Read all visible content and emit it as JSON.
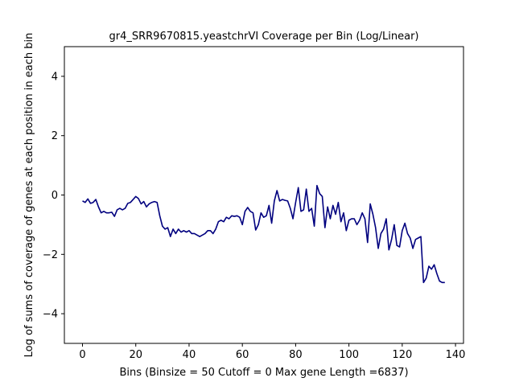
{
  "chart_data": {
    "type": "line",
    "title": "gr4_SRR9670815.yeastchrVI Coverage per Bin (Log/Linear)",
    "xlabel": "Bins  (Binsize = 50 Cutoff = 0 Max gene Length =6837)",
    "ylabel": "Log of sums of coverage of genes at each position in each bin",
    "xlim": [
      -6.8,
      143
    ],
    "ylim": [
      -5,
      5
    ],
    "xticks": [
      0,
      20,
      40,
      60,
      80,
      100,
      120,
      140
    ],
    "yticks": [
      -4,
      -2,
      0,
      2,
      4
    ],
    "grid": false,
    "line_color": "#00007f",
    "series": [
      {
        "x": [
          0,
          1,
          2,
          3,
          4,
          5,
          6,
          7,
          8,
          9,
          10,
          11,
          12,
          13,
          14,
          15,
          16,
          17,
          18,
          19,
          20,
          21,
          22,
          23,
          24,
          25,
          26,
          27,
          28,
          29,
          30,
          31,
          32,
          33,
          34,
          35,
          36,
          37,
          38,
          39,
          40,
          41,
          42,
          43,
          44,
          45,
          46,
          47,
          48,
          49,
          50,
          51,
          52,
          53,
          54,
          55,
          56,
          57,
          58,
          59,
          60,
          61,
          62,
          63,
          64,
          65,
          66,
          67,
          68,
          69,
          70,
          71,
          72,
          73,
          74,
          75,
          76,
          77,
          78,
          79,
          80,
          81,
          82,
          83,
          84,
          85,
          86,
          87,
          88,
          89,
          90,
          91,
          92,
          93,
          94,
          95,
          96,
          97,
          98,
          99,
          100,
          101,
          102,
          103,
          104,
          105,
          106,
          107,
          108,
          109,
          110,
          111,
          112,
          113,
          114,
          115,
          116,
          117,
          118,
          119,
          120,
          121,
          122,
          123,
          124,
          125,
          126,
          127,
          128,
          129,
          130,
          131,
          132,
          133,
          134,
          135,
          136
        ],
        "values": [
          -0.2,
          -0.25,
          -0.13,
          -0.28,
          -0.25,
          -0.15,
          -0.4,
          -0.6,
          -0.55,
          -0.6,
          -0.6,
          -0.58,
          -0.72,
          -0.5,
          -0.45,
          -0.5,
          -0.45,
          -0.28,
          -0.25,
          -0.15,
          -0.05,
          -0.12,
          -0.3,
          -0.22,
          -0.4,
          -0.3,
          -0.25,
          -0.22,
          -0.25,
          -0.7,
          -1.05,
          -1.15,
          -1.1,
          -1.4,
          -1.15,
          -1.3,
          -1.15,
          -1.25,
          -1.2,
          -1.25,
          -1.2,
          -1.3,
          -1.3,
          -1.35,
          -1.4,
          -1.35,
          -1.3,
          -1.2,
          -1.2,
          -1.3,
          -1.15,
          -0.9,
          -0.85,
          -0.9,
          -0.75,
          -0.8,
          -0.7,
          -0.72,
          -0.7,
          -0.75,
          -1.0,
          -0.55,
          -0.42,
          -0.55,
          -0.6,
          -1.18,
          -1.0,
          -0.6,
          -0.75,
          -0.7,
          -0.35,
          -0.95,
          -0.2,
          0.15,
          -0.2,
          -0.15,
          -0.18,
          -0.2,
          -0.45,
          -0.8,
          -0.25,
          0.25,
          -0.55,
          -0.5,
          0.2,
          -0.55,
          -0.45,
          -1.05,
          0.32,
          0.05,
          -0.05,
          -1.1,
          -0.4,
          -0.8,
          -0.35,
          -0.65,
          -0.25,
          -0.9,
          -0.6,
          -1.2,
          -0.85,
          -0.8,
          -0.8,
          -1.0,
          -0.85,
          -0.6,
          -0.8,
          -1.6,
          -0.3,
          -0.65,
          -1.1,
          -1.8,
          -1.3,
          -1.15,
          -0.8,
          -1.85,
          -1.5,
          -1.0,
          -1.7,
          -1.75,
          -1.2,
          -0.95,
          -1.3,
          -1.45,
          -1.8,
          -1.5,
          -1.45,
          -1.4,
          -2.95,
          -2.8,
          -2.4,
          -2.5,
          -2.35,
          -2.65,
          -2.9,
          -2.95,
          -2.95
        ]
      }
    ]
  }
}
